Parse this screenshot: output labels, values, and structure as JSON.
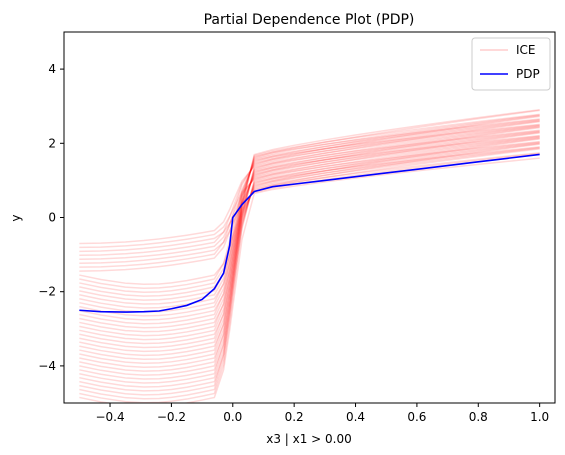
{
  "chart_data": {
    "type": "line",
    "title": "Partial Dependence Plot (PDP)",
    "xlabel": "x3 | x1 > 0.00",
    "ylabel": "y",
    "xlim": [
      -0.55,
      1.05
    ],
    "ylim": [
      -5,
      5
    ],
    "xticks": [
      -0.4,
      -0.2,
      0.0,
      0.2,
      0.4,
      0.6,
      0.8,
      1.0
    ],
    "xtick_labels": [
      "−0.4",
      "−0.2",
      "0.0",
      "0.2",
      "0.4",
      "0.6",
      "0.8",
      "1.0"
    ],
    "yticks": [
      -4,
      -2,
      0,
      2,
      4
    ],
    "ytick_labels": [
      "−4",
      "−2",
      "0",
      "2",
      "4"
    ],
    "grid": false,
    "legend": {
      "placement": "top-right",
      "entries": [
        "ICE",
        "PDP"
      ]
    },
    "colors": {
      "ice": "#ff0000",
      "pdp": "#0000ff"
    },
    "x": [
      -0.5,
      -0.43,
      -0.35,
      -0.29,
      -0.24,
      -0.2,
      -0.15,
      -0.1,
      -0.06,
      -0.03,
      -0.01,
      0.0,
      0.03,
      0.07,
      0.13,
      0.2,
      0.3,
      0.4,
      0.5,
      0.6,
      0.7,
      0.8,
      0.9,
      1.0
    ],
    "series": [
      {
        "name": "PDP",
        "values": [
          -2.5,
          -2.54,
          -2.55,
          -2.54,
          -2.52,
          -2.46,
          -2.37,
          -2.21,
          -1.92,
          -1.5,
          -0.75,
          0.0,
          0.35,
          0.7,
          0.83,
          0.9,
          1.0,
          1.1,
          1.2,
          1.3,
          1.4,
          1.5,
          1.6,
          1.7
        ]
      }
    ],
    "ice_count": 40,
    "ice_left_range": [
      -4.85,
      -0.7
    ],
    "ice_right_range": [
      0.9,
      2.8
    ]
  }
}
